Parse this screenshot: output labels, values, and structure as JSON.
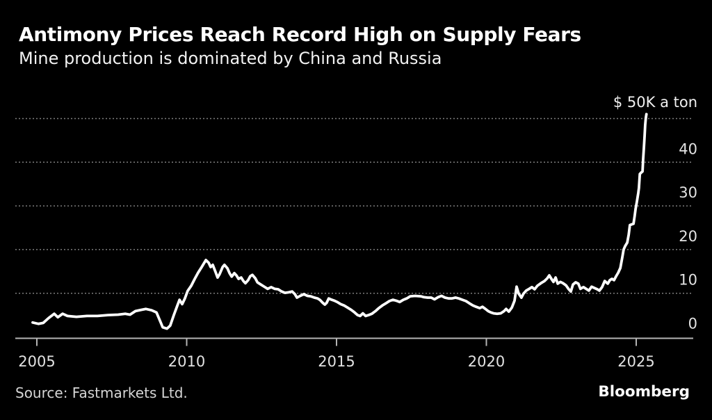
{
  "header": {
    "title": "Antimony Prices Reach Record High on Supply Fears",
    "subtitle": "Mine production is dominated by China and Russia"
  },
  "footer": {
    "source": "Source: Fastmarkets Ltd.",
    "brand": "Bloomberg"
  },
  "colors": {
    "background": "#000000",
    "line": "#ffffff",
    "grid": "#7e7e7e",
    "axis": "#b5b5b5",
    "tick_label": "#e2e2e2",
    "title": "#ffffff",
    "subtitle": "#f2f2f2",
    "source": "#d6d6d6"
  },
  "chart_data": {
    "type": "line",
    "title": "Antimony Prices Reach Record High on Supply Fears",
    "subtitle": "Mine production is dominated by China and Russia",
    "unit_label": "$ 50K a ton",
    "grid": "horizontal-dotted",
    "legend": "none",
    "xlim": [
      2004.3,
      2026.9
    ],
    "ylim": [
      0,
      51.5
    ],
    "x_axis": {
      "tick_years": [
        2005,
        2010,
        2015,
        2020,
        2025
      ],
      "tick_labels": [
        "2005",
        "2010",
        "2015",
        "2020",
        "2025"
      ]
    },
    "y_axis": {
      "units": "thousand USD per ton",
      "gridline_values": [
        10,
        20,
        30,
        40,
        50
      ],
      "label_values": [
        40,
        30,
        20,
        10,
        0
      ],
      "tick_labels": [
        "40",
        "30",
        "20",
        "10",
        "0"
      ]
    },
    "series": [
      {
        "points": [
          [
            2004.86,
            3.3
          ],
          [
            2005.05,
            3.0
          ],
          [
            2005.21,
            3.2
          ],
          [
            2005.39,
            4.3
          ],
          [
            2005.58,
            5.3
          ],
          [
            2005.7,
            4.5
          ],
          [
            2005.86,
            5.3
          ],
          [
            2006.02,
            4.8
          ],
          [
            2006.32,
            4.6
          ],
          [
            2006.67,
            4.8
          ],
          [
            2007.02,
            4.8
          ],
          [
            2007.37,
            5.0
          ],
          [
            2007.71,
            5.1
          ],
          [
            2007.95,
            5.3
          ],
          [
            2008.11,
            5.1
          ],
          [
            2008.29,
            5.9
          ],
          [
            2008.48,
            6.2
          ],
          [
            2008.64,
            6.4
          ],
          [
            2008.83,
            6.1
          ],
          [
            2008.99,
            5.6
          ],
          [
            2009.11,
            3.7
          ],
          [
            2009.2,
            2.2
          ],
          [
            2009.34,
            1.9
          ],
          [
            2009.45,
            2.6
          ],
          [
            2009.57,
            5.0
          ],
          [
            2009.69,
            7.2
          ],
          [
            2009.76,
            8.5
          ],
          [
            2009.85,
            7.5
          ],
          [
            2009.94,
            8.8
          ],
          [
            2010.03,
            10.5
          ],
          [
            2010.15,
            11.7
          ],
          [
            2010.27,
            13.3
          ],
          [
            2010.38,
            14.7
          ],
          [
            2010.5,
            16.0
          ],
          [
            2010.57,
            16.8
          ],
          [
            2010.64,
            17.6
          ],
          [
            2010.73,
            17.0
          ],
          [
            2010.8,
            16.0
          ],
          [
            2010.87,
            16.5
          ],
          [
            2010.96,
            14.9
          ],
          [
            2011.03,
            13.6
          ],
          [
            2011.1,
            14.4
          ],
          [
            2011.2,
            16.0
          ],
          [
            2011.26,
            16.5
          ],
          [
            2011.36,
            15.7
          ],
          [
            2011.43,
            14.6
          ],
          [
            2011.5,
            13.8
          ],
          [
            2011.59,
            14.6
          ],
          [
            2011.66,
            14.1
          ],
          [
            2011.73,
            13.3
          ],
          [
            2011.82,
            13.6
          ],
          [
            2011.89,
            12.8
          ],
          [
            2011.96,
            12.3
          ],
          [
            2012.05,
            13.0
          ],
          [
            2012.12,
            13.9
          ],
          [
            2012.19,
            14.2
          ],
          [
            2012.29,
            13.4
          ],
          [
            2012.36,
            12.5
          ],
          [
            2012.47,
            12.0
          ],
          [
            2012.59,
            11.5
          ],
          [
            2012.7,
            11.0
          ],
          [
            2012.82,
            11.4
          ],
          [
            2012.94,
            11.0
          ],
          [
            2013.05,
            10.9
          ],
          [
            2013.17,
            10.4
          ],
          [
            2013.28,
            10.1
          ],
          [
            2013.4,
            10.2
          ],
          [
            2013.52,
            10.4
          ],
          [
            2013.61,
            9.8
          ],
          [
            2013.68,
            9.0
          ],
          [
            2013.79,
            9.4
          ],
          [
            2013.91,
            9.8
          ],
          [
            2014.03,
            9.4
          ],
          [
            2014.14,
            9.3
          ],
          [
            2014.26,
            9.0
          ],
          [
            2014.37,
            8.8
          ],
          [
            2014.44,
            8.5
          ],
          [
            2014.54,
            7.8
          ],
          [
            2014.61,
            7.4
          ],
          [
            2014.67,
            7.8
          ],
          [
            2014.74,
            8.8
          ],
          [
            2014.84,
            8.5
          ],
          [
            2014.93,
            8.3
          ],
          [
            2015.02,
            8.0
          ],
          [
            2015.14,
            7.5
          ],
          [
            2015.25,
            7.2
          ],
          [
            2015.37,
            6.7
          ],
          [
            2015.49,
            6.2
          ],
          [
            2015.6,
            5.6
          ],
          [
            2015.7,
            5.0
          ],
          [
            2015.79,
            4.8
          ],
          [
            2015.88,
            5.4
          ],
          [
            2015.97,
            4.8
          ],
          [
            2016.07,
            5.0
          ],
          [
            2016.18,
            5.3
          ],
          [
            2016.3,
            5.9
          ],
          [
            2016.41,
            6.6
          ],
          [
            2016.53,
            7.2
          ],
          [
            2016.65,
            7.7
          ],
          [
            2016.76,
            8.2
          ],
          [
            2016.88,
            8.5
          ],
          [
            2016.99,
            8.3
          ],
          [
            2017.11,
            8.0
          ],
          [
            2017.23,
            8.5
          ],
          [
            2017.34,
            8.8
          ],
          [
            2017.46,
            9.3
          ],
          [
            2017.62,
            9.4
          ],
          [
            2017.81,
            9.3
          ],
          [
            2017.92,
            9.1
          ],
          [
            2018.04,
            9.0
          ],
          [
            2018.16,
            9.0
          ],
          [
            2018.27,
            8.6
          ],
          [
            2018.39,
            9.1
          ],
          [
            2018.5,
            9.4
          ],
          [
            2018.62,
            9.0
          ],
          [
            2018.74,
            8.8
          ],
          [
            2018.85,
            8.8
          ],
          [
            2018.97,
            9.0
          ],
          [
            2019.08,
            8.8
          ],
          [
            2019.2,
            8.5
          ],
          [
            2019.32,
            8.2
          ],
          [
            2019.43,
            7.7
          ],
          [
            2019.55,
            7.2
          ],
          [
            2019.66,
            6.9
          ],
          [
            2019.78,
            6.6
          ],
          [
            2019.87,
            6.9
          ],
          [
            2019.97,
            6.4
          ],
          [
            2020.06,
            5.9
          ],
          [
            2020.15,
            5.6
          ],
          [
            2020.24,
            5.4
          ],
          [
            2020.36,
            5.3
          ],
          [
            2020.48,
            5.4
          ],
          [
            2020.59,
            5.9
          ],
          [
            2020.66,
            6.4
          ],
          [
            2020.75,
            5.8
          ],
          [
            2020.85,
            6.7
          ],
          [
            2020.94,
            8.3
          ],
          [
            2021.01,
            11.5
          ],
          [
            2021.08,
            9.9
          ],
          [
            2021.17,
            9.0
          ],
          [
            2021.24,
            9.9
          ],
          [
            2021.33,
            10.6
          ],
          [
            2021.43,
            11.0
          ],
          [
            2021.52,
            11.4
          ],
          [
            2021.61,
            10.9
          ],
          [
            2021.7,
            11.7
          ],
          [
            2021.82,
            12.3
          ],
          [
            2021.94,
            12.8
          ],
          [
            2022.03,
            13.4
          ],
          [
            2022.1,
            14.1
          ],
          [
            2022.17,
            13.3
          ],
          [
            2022.24,
            12.6
          ],
          [
            2022.31,
            13.6
          ],
          [
            2022.38,
            12.2
          ],
          [
            2022.47,
            12.6
          ],
          [
            2022.56,
            12.3
          ],
          [
            2022.66,
            11.8
          ],
          [
            2022.75,
            10.9
          ],
          [
            2022.82,
            10.4
          ],
          [
            2022.89,
            12.0
          ],
          [
            2022.98,
            12.5
          ],
          [
            2023.07,
            12.2
          ],
          [
            2023.14,
            11.0
          ],
          [
            2023.24,
            11.4
          ],
          [
            2023.33,
            11.0
          ],
          [
            2023.42,
            10.6
          ],
          [
            2023.51,
            11.5
          ],
          [
            2023.61,
            11.2
          ],
          [
            2023.7,
            10.9
          ],
          [
            2023.77,
            10.6
          ],
          [
            2023.86,
            11.4
          ],
          [
            2023.95,
            12.8
          ],
          [
            2024.05,
            12.2
          ],
          [
            2024.12,
            13.0
          ],
          [
            2024.19,
            13.3
          ],
          [
            2024.26,
            13.0
          ],
          [
            2024.33,
            13.9
          ],
          [
            2024.4,
            14.7
          ],
          [
            2024.47,
            15.8
          ],
          [
            2024.54,
            18.4
          ],
          [
            2024.58,
            20.0
          ],
          [
            2024.63,
            20.8
          ],
          [
            2024.7,
            21.6
          ],
          [
            2024.75,
            23.4
          ],
          [
            2024.79,
            25.6
          ],
          [
            2024.86,
            25.8
          ],
          [
            2024.91,
            25.9
          ],
          [
            2024.95,
            27.7
          ],
          [
            2024.98,
            29.3
          ],
          [
            2025.02,
            30.9
          ],
          [
            2025.07,
            33.0
          ],
          [
            2025.09,
            34.1
          ],
          [
            2025.12,
            37.3
          ],
          [
            2025.16,
            37.6
          ],
          [
            2025.21,
            37.9
          ],
          [
            2025.23,
            40.5
          ],
          [
            2025.26,
            43.7
          ],
          [
            2025.28,
            46.1
          ],
          [
            2025.3,
            48.5
          ],
          [
            2025.32,
            50.1
          ],
          [
            2025.34,
            51.0
          ]
        ]
      }
    ]
  }
}
